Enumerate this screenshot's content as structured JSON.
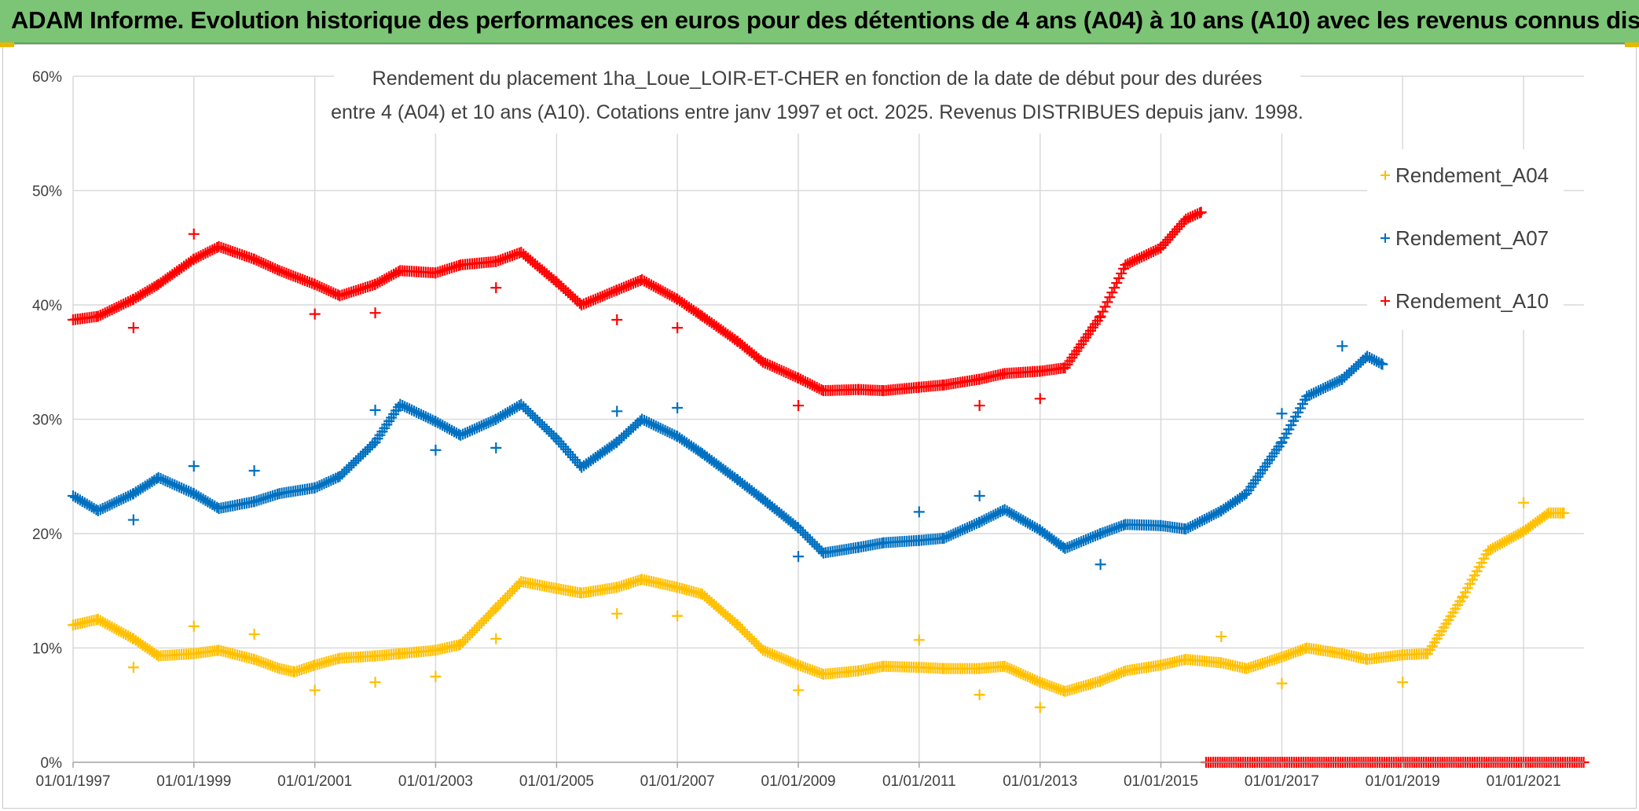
{
  "header": {
    "title": "ADAM Informe. Evolution historique des performances en euros pour des détentions de 4 ans (A04) à 10 ans (A10) avec les revenus connus distribués"
  },
  "chart_data": {
    "type": "scatter",
    "title_lines": [
      "Rendement du placement 1ha_Loue_LOIR-ET-CHER en fonction de la date de début pour des durées",
      "entre 4 (A04) et 10 ans (A10). Cotations entre janv 1997 et oct. 2025. Revenus DISTRIBUES depuis janv. 1998."
    ],
    "xlabel": "",
    "ylabel": "",
    "x_range": [
      "1997-01-01",
      "2022-01-01"
    ],
    "y_range": [
      0,
      0.6
    ],
    "x_ticks": [
      "01/01/1997",
      "01/01/1999",
      "01/01/2001",
      "01/01/2003",
      "01/01/2005",
      "01/01/2007",
      "01/01/2009",
      "01/01/2011",
      "01/01/2013",
      "01/01/2015",
      "01/01/2017",
      "01/01/2019",
      "01/01/2021"
    ],
    "x_tick_dates": [
      "1997-01-01",
      "1999-01-01",
      "2001-01-01",
      "2003-01-01",
      "2005-01-01",
      "2007-01-01",
      "2009-01-01",
      "2011-01-01",
      "2013-01-01",
      "2015-01-01",
      "2017-01-01",
      "2019-01-01",
      "2021-01-01"
    ],
    "y_ticks": [
      "0%",
      "10%",
      "20%",
      "30%",
      "40%",
      "50%",
      "60%"
    ],
    "y_tick_values": [
      0,
      0.1,
      0.2,
      0.3,
      0.4,
      0.5,
      0.6
    ],
    "grid": true,
    "legend_position": "top-right",
    "series": [
      {
        "name": "Rendement_A04",
        "color": "#ffc000",
        "marker": "plus",
        "points": [
          [
            "1997-01-01",
            0.12
          ],
          [
            "1997-06-01",
            0.125
          ],
          [
            "1998-01-01",
            0.108
          ],
          [
            "1998-06-01",
            0.093
          ],
          [
            "1999-01-01",
            0.095
          ],
          [
            "1999-06-01",
            0.098
          ],
          [
            "2000-01-01",
            0.09
          ],
          [
            "2000-06-01",
            0.082
          ],
          [
            "2000-09-01",
            0.079
          ],
          [
            "2001-01-01",
            0.085
          ],
          [
            "2001-06-01",
            0.091
          ],
          [
            "2002-01-01",
            0.093
          ],
          [
            "2002-06-01",
            0.095
          ],
          [
            "2003-01-01",
            0.098
          ],
          [
            "2003-06-01",
            0.103
          ],
          [
            "2004-01-01",
            0.135
          ],
          [
            "2004-06-01",
            0.158
          ],
          [
            "2005-01-01",
            0.152
          ],
          [
            "2005-06-01",
            0.148
          ],
          [
            "2006-01-01",
            0.153
          ],
          [
            "2006-06-01",
            0.16
          ],
          [
            "2007-01-01",
            0.153
          ],
          [
            "2007-06-01",
            0.147
          ],
          [
            "2008-01-01",
            0.12
          ],
          [
            "2008-06-01",
            0.098
          ],
          [
            "2009-01-01",
            0.085
          ],
          [
            "2009-06-01",
            0.077
          ],
          [
            "2010-01-01",
            0.08
          ],
          [
            "2010-06-01",
            0.084
          ],
          [
            "2011-01-01",
            0.083
          ],
          [
            "2011-06-01",
            0.082
          ],
          [
            "2012-01-01",
            0.082
          ],
          [
            "2012-06-01",
            0.084
          ],
          [
            "2013-01-01",
            0.07
          ],
          [
            "2013-06-01",
            0.062
          ],
          [
            "2014-01-01",
            0.071
          ],
          [
            "2014-06-01",
            0.08
          ],
          [
            "2015-01-01",
            0.085
          ],
          [
            "2015-06-01",
            0.09
          ],
          [
            "2016-01-01",
            0.087
          ],
          [
            "2016-06-01",
            0.082
          ],
          [
            "2017-01-01",
            0.092
          ],
          [
            "2017-06-01",
            0.1
          ],
          [
            "2018-01-01",
            0.095
          ],
          [
            "2018-06-01",
            0.09
          ],
          [
            "2019-01-01",
            0.094
          ],
          [
            "2019-06-01",
            0.095
          ],
          [
            "2020-01-01",
            0.145
          ],
          [
            "2020-06-01",
            0.185
          ],
          [
            "2021-01-01",
            0.202
          ],
          [
            "2021-06-01",
            0.218
          ],
          [
            "2021-09-01",
            0.218
          ]
        ],
        "isolated": [
          [
            "1998-01-01",
            0.083
          ],
          [
            "1999-01-01",
            0.119
          ],
          [
            "2000-01-01",
            0.112
          ],
          [
            "2001-01-01",
            0.063
          ],
          [
            "2002-01-01",
            0.07
          ],
          [
            "2003-01-01",
            0.075
          ],
          [
            "2004-01-01",
            0.108
          ],
          [
            "2006-01-01",
            0.13
          ],
          [
            "2007-01-01",
            0.128
          ],
          [
            "2009-01-01",
            0.063
          ],
          [
            "2011-01-01",
            0.107
          ],
          [
            "2012-01-01",
            0.059
          ],
          [
            "2013-01-01",
            0.048
          ],
          [
            "2016-01-01",
            0.11
          ],
          [
            "2017-01-01",
            0.069
          ],
          [
            "2019-01-01",
            0.07
          ],
          [
            "2021-01-01",
            0.227
          ]
        ]
      },
      {
        "name": "Rendement_A07",
        "color": "#0070c0",
        "marker": "plus",
        "points": [
          [
            "1997-01-01",
            0.233
          ],
          [
            "1997-06-01",
            0.22
          ],
          [
            "1998-01-01",
            0.235
          ],
          [
            "1998-06-01",
            0.249
          ],
          [
            "1999-01-01",
            0.235
          ],
          [
            "1999-06-01",
            0.222
          ],
          [
            "2000-01-01",
            0.228
          ],
          [
            "2000-06-01",
            0.235
          ],
          [
            "2001-01-01",
            0.24
          ],
          [
            "2001-06-01",
            0.25
          ],
          [
            "2002-01-01",
            0.28
          ],
          [
            "2002-06-01",
            0.313
          ],
          [
            "2003-01-01",
            0.298
          ],
          [
            "2003-06-01",
            0.286
          ],
          [
            "2004-01-01",
            0.3
          ],
          [
            "2004-06-01",
            0.313
          ],
          [
            "2005-01-01",
            0.283
          ],
          [
            "2005-06-01",
            0.258
          ],
          [
            "2006-01-01",
            0.28
          ],
          [
            "2006-06-01",
            0.3
          ],
          [
            "2007-01-01",
            0.285
          ],
          [
            "2007-06-01",
            0.27
          ],
          [
            "2008-01-01",
            0.247
          ],
          [
            "2008-06-01",
            0.23
          ],
          [
            "2009-01-01",
            0.205
          ],
          [
            "2009-06-01",
            0.183
          ],
          [
            "2010-01-01",
            0.188
          ],
          [
            "2010-06-01",
            0.192
          ],
          [
            "2011-01-01",
            0.194
          ],
          [
            "2011-06-01",
            0.196
          ],
          [
            "2012-01-01",
            0.21
          ],
          [
            "2012-06-01",
            0.221
          ],
          [
            "2013-01-01",
            0.203
          ],
          [
            "2013-06-01",
            0.187
          ],
          [
            "2014-01-01",
            0.2
          ],
          [
            "2014-06-01",
            0.208
          ],
          [
            "2015-01-01",
            0.207
          ],
          [
            "2015-06-01",
            0.204
          ],
          [
            "2016-01-01",
            0.22
          ],
          [
            "2016-06-01",
            0.235
          ],
          [
            "2017-01-01",
            0.28
          ],
          [
            "2017-06-01",
            0.32
          ],
          [
            "2018-01-01",
            0.335
          ],
          [
            "2018-06-01",
            0.355
          ],
          [
            "2018-09-01",
            0.348
          ]
        ],
        "isolated": [
          [
            "1998-01-01",
            0.212
          ],
          [
            "1999-01-01",
            0.259
          ],
          [
            "2000-01-01",
            0.255
          ],
          [
            "2002-01-01",
            0.308
          ],
          [
            "2003-01-01",
            0.273
          ],
          [
            "2004-01-01",
            0.275
          ],
          [
            "2006-01-01",
            0.307
          ],
          [
            "2007-01-01",
            0.31
          ],
          [
            "2009-01-01",
            0.18
          ],
          [
            "2011-01-01",
            0.219
          ],
          [
            "2012-01-01",
            0.233
          ],
          [
            "2014-01-01",
            0.173
          ],
          [
            "2017-01-01",
            0.305
          ],
          [
            "2018-01-01",
            0.364
          ]
        ]
      },
      {
        "name": "Rendement_A10",
        "color": "#ff0000",
        "marker": "plus",
        "points": [
          [
            "1997-01-01",
            0.387
          ],
          [
            "1997-06-01",
            0.39
          ],
          [
            "1998-01-01",
            0.405
          ],
          [
            "1998-06-01",
            0.418
          ],
          [
            "1999-01-01",
            0.44
          ],
          [
            "1999-06-01",
            0.451
          ],
          [
            "2000-01-01",
            0.44
          ],
          [
            "2000-06-01",
            0.43
          ],
          [
            "2001-01-01",
            0.418
          ],
          [
            "2001-06-01",
            0.408
          ],
          [
            "2002-01-01",
            0.418
          ],
          [
            "2002-06-01",
            0.43
          ],
          [
            "2003-01-01",
            0.428
          ],
          [
            "2003-06-01",
            0.435
          ],
          [
            "2004-01-01",
            0.438
          ],
          [
            "2004-06-01",
            0.446
          ],
          [
            "2005-01-01",
            0.42
          ],
          [
            "2005-06-01",
            0.4
          ],
          [
            "2006-01-01",
            0.413
          ],
          [
            "2006-06-01",
            0.422
          ],
          [
            "2007-01-01",
            0.405
          ],
          [
            "2007-06-01",
            0.39
          ],
          [
            "2008-01-01",
            0.368
          ],
          [
            "2008-06-01",
            0.35
          ],
          [
            "2009-01-01",
            0.336
          ],
          [
            "2009-06-01",
            0.325
          ],
          [
            "2010-01-01",
            0.326
          ],
          [
            "2010-06-01",
            0.325
          ],
          [
            "2011-01-01",
            0.328
          ],
          [
            "2011-06-01",
            0.33
          ],
          [
            "2012-01-01",
            0.335
          ],
          [
            "2012-06-01",
            0.34
          ],
          [
            "2013-01-01",
            0.342
          ],
          [
            "2013-06-01",
            0.345
          ],
          [
            "2014-01-01",
            0.39
          ],
          [
            "2014-06-01",
            0.435
          ],
          [
            "2015-01-01",
            0.45
          ],
          [
            "2015-06-01",
            0.475
          ],
          [
            "2015-09-01",
            0.481
          ]
        ],
        "isolated": [
          [
            "1998-01-01",
            0.38
          ],
          [
            "1999-01-01",
            0.462
          ],
          [
            "2001-01-01",
            0.392
          ],
          [
            "2002-01-01",
            0.393
          ],
          [
            "2004-01-01",
            0.415
          ],
          [
            "2006-01-01",
            0.387
          ],
          [
            "2007-01-01",
            0.38
          ],
          [
            "2009-01-01",
            0.312
          ],
          [
            "2012-01-01",
            0.312
          ],
          [
            "2013-01-01",
            0.318
          ]
        ],
        "zero_range": [
          "2015-10-01",
          "2021-12-31"
        ]
      }
    ]
  }
}
